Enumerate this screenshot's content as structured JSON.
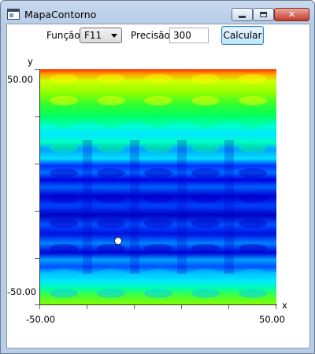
{
  "window": {
    "title": "MapaContorno",
    "controls": {
      "minimize_icon": "minimize-icon",
      "maximize_icon": "maximize-icon",
      "close_label": "✕"
    }
  },
  "toolbar": {
    "funcao_label": "Função",
    "funcao_selected": "F11",
    "precisao_label": "Precisão",
    "precisao_value": "300",
    "calcular_label": "Calcular"
  },
  "plot": {
    "axis": {
      "x_label": "x",
      "y_label": "y",
      "x_min_label": "-50.00",
      "x_max_label": "50.00",
      "y_min_label": "-50.00",
      "y_max_label": "50.00"
    },
    "marker": {
      "x": -17,
      "y": -23,
      "color": "#ffffff"
    },
    "colormap": [
      "#0000c8",
      "#0050ff",
      "#00c8ff",
      "#00ff80",
      "#80ff00",
      "#ffff00",
      "#ff6000"
    ]
  }
}
